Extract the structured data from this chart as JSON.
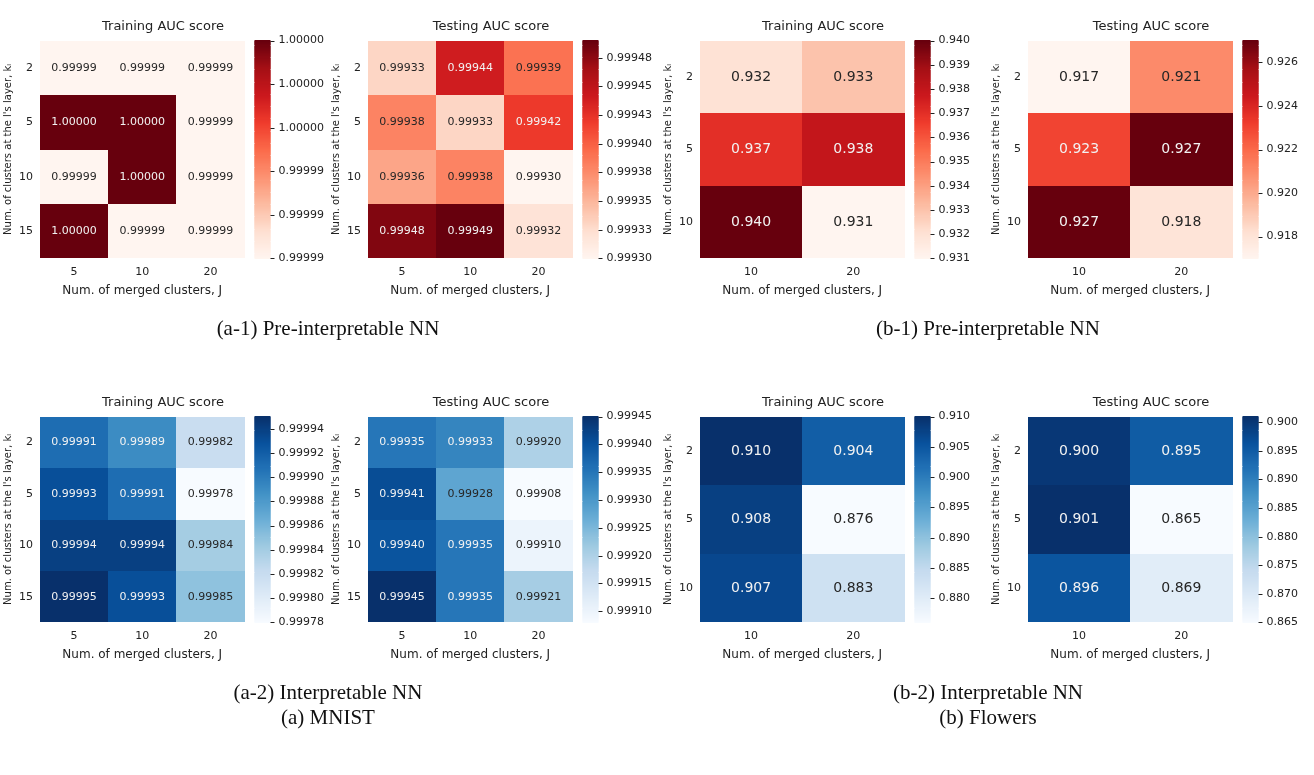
{
  "chart_data": [
    {
      "type": "heatmap",
      "title": "Training AUC score",
      "xlabel": "Num. of merged clusters, J",
      "ylabel": "Num. of clusters at the l's layer, kₗ",
      "categories": [
        "5",
        "10",
        "20"
      ],
      "y_categories": [
        "2",
        "5",
        "10",
        "15"
      ],
      "cells": [
        [
          0.99999,
          0.99999,
          0.99999
        ],
        [
          1.0,
          1.0,
          0.99999
        ],
        [
          0.99999,
          1.0,
          0.99999
        ],
        [
          1.0,
          0.99999,
          0.99999
        ]
      ],
      "cell_labels": [
        [
          "0.99999",
          "0.99999",
          "0.99999"
        ],
        [
          "1.00000",
          "1.00000",
          "0.99999"
        ],
        [
          "0.99999",
          "1.00000",
          "0.99999"
        ],
        [
          "1.00000",
          "0.99999",
          "0.99999"
        ]
      ],
      "clim": [
        0.99999,
        1.0
      ],
      "cticks": [
        {
          "value": 0.99999,
          "label": "0.99999"
        },
        {
          "value": 0.999992,
          "label": "0.99999"
        },
        {
          "value": 0.999994,
          "label": "0.99999"
        },
        {
          "value": 0.999996,
          "label": "1.00000"
        },
        {
          "value": 0.999998,
          "label": "1.00000"
        },
        {
          "value": 1.0,
          "label": "1.00000"
        }
      ],
      "colors": [
        "#fff5f0",
        "#fee0d2",
        "#fcbba1",
        "#fc9272",
        "#fb6a4a",
        "#ef3b2c",
        "#cb181d",
        "#a50f15",
        "#67000d"
      ],
      "annotations": [
        "(a-1) Pre-interpretable NN"
      ]
    },
    {
      "type": "heatmap",
      "title": "Testing AUC score",
      "xlabel": "Num. of merged clusters, J",
      "ylabel": "Num. of clusters at the l's layer, kₗ",
      "categories": [
        "5",
        "10",
        "20"
      ],
      "y_categories": [
        "2",
        "5",
        "10",
        "15"
      ],
      "cells": [
        [
          0.99933,
          0.99944,
          0.99939
        ],
        [
          0.99938,
          0.99933,
          0.99942
        ],
        [
          0.99936,
          0.99938,
          0.9993
        ],
        [
          0.99948,
          0.99949,
          0.99932
        ]
      ],
      "cell_labels": [
        [
          "0.99933",
          "0.99944",
          "0.99939"
        ],
        [
          "0.99938",
          "0.99933",
          "0.99942"
        ],
        [
          "0.99936",
          "0.99938",
          "0.99930"
        ],
        [
          "0.99948",
          "0.99949",
          "0.99932"
        ]
      ],
      "clim": [
        0.9993,
        0.99949
      ],
      "cticks": [
        {
          "value": 0.9993,
          "label": "0.99930"
        },
        {
          "value": 0.999325,
          "label": "0.99933"
        },
        {
          "value": 0.99935,
          "label": "0.99935"
        },
        {
          "value": 0.999375,
          "label": "0.99938"
        },
        {
          "value": 0.9994,
          "label": "0.99940"
        },
        {
          "value": 0.999425,
          "label": "0.99943"
        },
        {
          "value": 0.99945,
          "label": "0.99945"
        },
        {
          "value": 0.999475,
          "label": "0.99948"
        }
      ],
      "colors": [
        "#fff5f0",
        "#fee0d2",
        "#fcbba1",
        "#fc9272",
        "#fb6a4a",
        "#ef3b2c",
        "#cb181d",
        "#a50f15",
        "#67000d"
      ]
    },
    {
      "type": "heatmap",
      "title": "Training AUC score",
      "xlabel": "Num. of merged clusters, J",
      "ylabel": "Num. of clusters at the l's layer, kₗ",
      "categories": [
        "10",
        "20"
      ],
      "y_categories": [
        "2",
        "5",
        "10"
      ],
      "cells": [
        [
          0.932,
          0.933
        ],
        [
          0.937,
          0.938
        ],
        [
          0.94,
          0.931
        ]
      ],
      "cell_labels": [
        [
          "0.932",
          "0.933"
        ],
        [
          "0.937",
          "0.938"
        ],
        [
          "0.940",
          "0.931"
        ]
      ],
      "clim": [
        0.931,
        0.94
      ],
      "cticks": [
        0.931,
        0.932,
        0.933,
        0.934,
        0.935,
        0.936,
        0.937,
        0.938,
        0.939,
        {
          "value": 0.94,
          "label": "0.940"
        }
      ],
      "colors": [
        "#fff5f0",
        "#fee0d2",
        "#fcbba1",
        "#fc9272",
        "#fb6a4a",
        "#ef3b2c",
        "#cb181d",
        "#a50f15",
        "#67000d"
      ],
      "annotations": [
        "(b-1) Pre-interpretable NN"
      ]
    },
    {
      "type": "heatmap",
      "title": "Testing AUC score",
      "xlabel": "Num. of merged clusters, J",
      "ylabel": "Num. of clusters at the l's layer, kₗ",
      "categories": [
        "10",
        "20"
      ],
      "y_categories": [
        "2",
        "5",
        "10"
      ],
      "cells": [
        [
          0.917,
          0.921
        ],
        [
          0.923,
          0.927
        ],
        [
          0.927,
          0.918
        ]
      ],
      "cell_labels": [
        [
          "0.917",
          "0.921"
        ],
        [
          "0.923",
          "0.927"
        ],
        [
          "0.927",
          "0.918"
        ]
      ],
      "clim": [
        0.917,
        0.927
      ],
      "cticks": [
        0.918,
        {
          "value": 0.92,
          "label": "0.920"
        },
        0.922,
        0.924,
        0.926
      ],
      "colors": [
        "#fff5f0",
        "#fee0d2",
        "#fcbba1",
        "#fc9272",
        "#fb6a4a",
        "#ef3b2c",
        "#cb181d",
        "#a50f15",
        "#67000d"
      ]
    },
    {
      "type": "heatmap",
      "title": "Training AUC score",
      "xlabel": "Num. of merged clusters, J",
      "ylabel": "Num. of clusters at the l's layer, kₗ",
      "categories": [
        "5",
        "10",
        "20"
      ],
      "y_categories": [
        "2",
        "5",
        "10",
        "15"
      ],
      "cells": [
        [
          0.99991,
          0.99989,
          0.99982
        ],
        [
          0.99993,
          0.99991,
          0.99978
        ],
        [
          0.99994,
          0.99994,
          0.99984
        ],
        [
          0.99995,
          0.99993,
          0.99985
        ]
      ],
      "cell_labels": [
        [
          "0.99991",
          "0.99989",
          "0.99982"
        ],
        [
          "0.99993",
          "0.99991",
          "0.99978"
        ],
        [
          "0.99994",
          "0.99994",
          "0.99984"
        ],
        [
          "0.99995",
          "0.99993",
          "0.99985"
        ]
      ],
      "clim": [
        0.99978,
        0.99995
      ],
      "cticks": [
        0.99978,
        {
          "value": 0.9998,
          "label": "0.99980"
        },
        0.99982,
        0.99984,
        0.99986,
        0.99988,
        {
          "value": 0.9999,
          "label": "0.99990"
        },
        0.99992,
        0.99994
      ],
      "colors": [
        "#f7fbff",
        "#deebf7",
        "#c6dbef",
        "#9ecae1",
        "#6baed6",
        "#4292c6",
        "#2171b5",
        "#08519c",
        "#08306b"
      ],
      "annotations": [
        "(a-2) Interpretable NN",
        "(a) MNIST"
      ]
    },
    {
      "type": "heatmap",
      "title": "Testing AUC score",
      "xlabel": "Num. of merged clusters, J",
      "ylabel": "Num. of clusters at the l's layer, kₗ",
      "categories": [
        "5",
        "10",
        "20"
      ],
      "y_categories": [
        "2",
        "5",
        "10",
        "15"
      ],
      "cells": [
        [
          0.99935,
          0.99933,
          0.9992
        ],
        [
          0.99941,
          0.99928,
          0.99908
        ],
        [
          0.9994,
          0.99935,
          0.9991
        ],
        [
          0.99945,
          0.99935,
          0.99921
        ]
      ],
      "cell_labels": [
        [
          "0.99935",
          "0.99933",
          "0.99920"
        ],
        [
          "0.99941",
          "0.99928",
          "0.99908"
        ],
        [
          "0.99940",
          "0.99935",
          "0.99910"
        ],
        [
          "0.99945",
          "0.99935",
          "0.99921"
        ]
      ],
      "clim": [
        0.99908,
        0.99945
      ],
      "cticks": [
        {
          "value": 0.9991,
          "label": "0.99910"
        },
        0.99915,
        {
          "value": 0.9992,
          "label": "0.99920"
        },
        0.99925,
        {
          "value": 0.9993,
          "label": "0.99930"
        },
        0.99935,
        {
          "value": 0.9994,
          "label": "0.99940"
        },
        0.99945
      ],
      "colors": [
        "#f7fbff",
        "#deebf7",
        "#c6dbef",
        "#9ecae1",
        "#6baed6",
        "#4292c6",
        "#2171b5",
        "#08519c",
        "#08306b"
      ]
    },
    {
      "type": "heatmap",
      "title": "Training AUC score",
      "xlabel": "Num. of merged clusters, J",
      "ylabel": "Num. of clusters at the l's layer, kₗ",
      "categories": [
        "10",
        "20"
      ],
      "y_categories": [
        "2",
        "5",
        "10"
      ],
      "cells": [
        [
          0.91,
          0.904
        ],
        [
          0.908,
          0.876
        ],
        [
          0.907,
          0.883
        ]
      ],
      "cell_labels": [
        [
          "0.910",
          "0.904"
        ],
        [
          "0.908",
          "0.876"
        ],
        [
          "0.907",
          "0.883"
        ]
      ],
      "clim": [
        0.876,
        0.91
      ],
      "cticks": [
        {
          "value": 0.88,
          "label": "0.880"
        },
        0.885,
        {
          "value": 0.89,
          "label": "0.890"
        },
        0.895,
        {
          "value": 0.9,
          "label": "0.900"
        },
        0.905,
        {
          "value": 0.91,
          "label": "0.910"
        }
      ],
      "colors": [
        "#f7fbff",
        "#deebf7",
        "#c6dbef",
        "#9ecae1",
        "#6baed6",
        "#4292c6",
        "#2171b5",
        "#08519c",
        "#08306b"
      ],
      "annotations": [
        "(b-2) Interpretable NN",
        "(b) Flowers"
      ]
    },
    {
      "type": "heatmap",
      "title": "Testing AUC score",
      "xlabel": "Num. of merged clusters, J",
      "ylabel": "Num. of clusters at the l's layer, kₗ",
      "categories": [
        "10",
        "20"
      ],
      "y_categories": [
        "2",
        "5",
        "10"
      ],
      "cells": [
        [
          0.9,
          0.895
        ],
        [
          0.901,
          0.865
        ],
        [
          0.896,
          0.869
        ]
      ],
      "cell_labels": [
        [
          "0.900",
          "0.895"
        ],
        [
          "0.901",
          "0.865"
        ],
        [
          "0.896",
          "0.869"
        ]
      ],
      "clim": [
        0.865,
        0.901
      ],
      "cticks": [
        0.865,
        {
          "value": 0.87,
          "label": "0.870"
        },
        0.875,
        {
          "value": 0.88,
          "label": "0.880"
        },
        0.885,
        {
          "value": 0.89,
          "label": "0.890"
        },
        0.895,
        {
          "value": 0.9,
          "label": "0.900"
        }
      ],
      "colors": [
        "#f7fbff",
        "#deebf7",
        "#c6dbef",
        "#9ecae1",
        "#6baed6",
        "#4292c6",
        "#2171b5",
        "#08519c",
        "#08306b"
      ]
    }
  ]
}
